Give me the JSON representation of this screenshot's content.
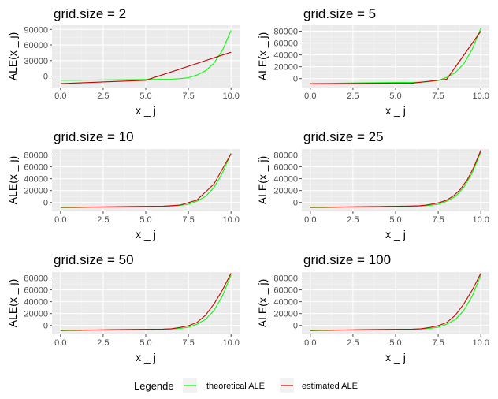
{
  "chart_data": [
    {
      "type": "line",
      "title": "grid.size = 2",
      "xlabel": "x _ j",
      "ylabel": "ALE(x _ j)",
      "xlim": [
        -0.5,
        10.5
      ],
      "ylim": [
        -22000,
        98000
      ],
      "xticks": [
        0.0,
        2.5,
        5.0,
        7.5,
        10.0
      ],
      "xtick_labels": [
        "0.0",
        "2.5",
        "5.0",
        "7.5",
        "10.0"
      ],
      "yticks": [
        0,
        30000,
        60000,
        90000
      ],
      "ytick_labels": [
        "0",
        "30000",
        "60000",
        "90000"
      ],
      "series": [
        {
          "name": "theoretical ALE",
          "color": "#00ff00",
          "x": [
            0,
            1,
            2,
            3,
            4,
            5,
            6,
            6.5,
            7,
            7.5,
            8,
            8.5,
            9,
            9.5,
            10
          ],
          "y": [
            -8000,
            -7900,
            -7600,
            -7200,
            -6800,
            -6500,
            -6300,
            -6000,
            -5000,
            -3000,
            2000,
            10000,
            25000,
            50000,
            88000
          ]
        },
        {
          "name": "estimated ALE",
          "color": "#cc0000",
          "x": [
            0,
            5,
            10
          ],
          "y": [
            -14500,
            -8000,
            46000
          ]
        }
      ]
    },
    {
      "type": "line",
      "title": "grid.size = 5",
      "xlabel": "x _ j",
      "ylabel": "ALE(x _ j)",
      "xlim": [
        -0.5,
        10.5
      ],
      "ylim": [
        -15000,
        90000
      ],
      "xticks": [
        0.0,
        2.5,
        5.0,
        7.5,
        10.0
      ],
      "xtick_labels": [
        "0.0",
        "2.5",
        "5.0",
        "7.5",
        "10.0"
      ],
      "yticks": [
        0,
        20000,
        40000,
        60000,
        80000
      ],
      "ytick_labels": [
        "0",
        "20000",
        "40000",
        "60000",
        "80000"
      ],
      "series": [
        {
          "name": "theoretical ALE",
          "color": "#00ff00",
          "x": [
            0,
            1,
            2,
            3,
            4,
            5,
            6,
            6.5,
            7,
            7.5,
            8,
            8.5,
            9,
            9.5,
            10
          ],
          "y": [
            -8000,
            -7900,
            -7600,
            -7200,
            -6800,
            -6500,
            -6300,
            -6000,
            -5000,
            -3000,
            2000,
            10000,
            25000,
            50000,
            85000
          ]
        },
        {
          "name": "estimated ALE",
          "color": "#cc0000",
          "x": [
            0,
            2,
            4,
            6,
            8,
            10
          ],
          "y": [
            -9000,
            -8500,
            -8000,
            -7500,
            -1000,
            80000
          ]
        }
      ]
    },
    {
      "type": "line",
      "title": "grid.size = 10",
      "xlabel": "x _ j",
      "ylabel": "ALE(x _ j)",
      "xlim": [
        -0.5,
        10.5
      ],
      "ylim": [
        -15000,
        90000
      ],
      "xticks": [
        0.0,
        2.5,
        5.0,
        7.5,
        10.0
      ],
      "xtick_labels": [
        "0.0",
        "2.5",
        "5.0",
        "7.5",
        "10.0"
      ],
      "yticks": [
        0,
        20000,
        40000,
        60000,
        80000
      ],
      "ytick_labels": [
        "0",
        "20000",
        "40000",
        "60000",
        "80000"
      ],
      "series": [
        {
          "name": "theoretical ALE",
          "color": "#00ff00",
          "x": [
            0,
            1,
            2,
            3,
            4,
            5,
            6,
            6.5,
            7,
            7.5,
            8,
            8.5,
            9,
            9.5,
            10
          ],
          "y": [
            -8000,
            -7900,
            -7600,
            -7200,
            -6800,
            -6500,
            -6300,
            -6000,
            -5000,
            -3000,
            2000,
            10000,
            25000,
            50000,
            83000
          ]
        },
        {
          "name": "estimated ALE",
          "color": "#cc0000",
          "x": [
            0,
            1,
            2,
            3,
            4,
            5,
            6,
            7,
            8,
            9,
            10
          ],
          "y": [
            -8500,
            -8200,
            -7800,
            -7500,
            -7200,
            -6800,
            -6500,
            -4500,
            4000,
            31000,
            82000
          ]
        }
      ]
    },
    {
      "type": "line",
      "title": "grid.size = 25",
      "xlabel": "x _ j",
      "ylabel": "ALE(x _ j)",
      "xlim": [
        -0.5,
        10.5
      ],
      "ylim": [
        -15000,
        90000
      ],
      "xticks": [
        0.0,
        2.5,
        5.0,
        7.5,
        10.0
      ],
      "xtick_labels": [
        "0.0",
        "2.5",
        "5.0",
        "7.5",
        "10.0"
      ],
      "yticks": [
        0,
        20000,
        40000,
        60000,
        80000
      ],
      "ytick_labels": [
        "0",
        "20000",
        "40000",
        "60000",
        "80000"
      ],
      "series": [
        {
          "name": "theoretical ALE",
          "color": "#00ff00",
          "x": [
            0,
            1,
            2,
            3,
            4,
            5,
            6,
            6.5,
            7,
            7.5,
            8,
            8.5,
            9,
            9.5,
            10
          ],
          "y": [
            -8000,
            -7900,
            -7600,
            -7200,
            -6800,
            -6500,
            -6300,
            -6000,
            -5000,
            -3000,
            2000,
            10000,
            25000,
            50000,
            85000
          ]
        },
        {
          "name": "estimated ALE",
          "color": "#cc0000",
          "x": [
            0,
            0.4,
            0.8,
            1.2,
            1.6,
            2,
            2.4,
            2.8,
            3.2,
            3.6,
            4,
            4.4,
            4.8,
            5.2,
            5.6,
            6,
            6.4,
            6.8,
            7.2,
            7.6,
            8,
            8.4,
            8.8,
            9.2,
            9.6,
            10
          ],
          "y": [
            -8500,
            -8400,
            -8300,
            -8100,
            -7900,
            -7700,
            -7600,
            -7400,
            -7300,
            -7100,
            -7000,
            -6800,
            -6600,
            -6400,
            -6200,
            -6000,
            -5500,
            -4500,
            -2500,
            0,
            4000,
            11000,
            22000,
            38000,
            60000,
            88000
          ]
        }
      ]
    },
    {
      "type": "line",
      "title": "grid.size = 50",
      "xlabel": "x _ j",
      "ylabel": "ALE(x _ j)",
      "xlim": [
        -0.5,
        10.5
      ],
      "ylim": [
        -15000,
        90000
      ],
      "xticks": [
        0.0,
        2.5,
        5.0,
        7.5,
        10.0
      ],
      "xtick_labels": [
        "0.0",
        "2.5",
        "5.0",
        "7.5",
        "10.0"
      ],
      "yticks": [
        0,
        20000,
        40000,
        60000,
        80000
      ],
      "ytick_labels": [
        "0",
        "20000",
        "40000",
        "60000",
        "80000"
      ],
      "series": [
        {
          "name": "theoretical ALE",
          "color": "#00ff00",
          "x": [
            0,
            1,
            2,
            3,
            4,
            5,
            6,
            6.5,
            7,
            7.5,
            8,
            8.5,
            9,
            9.5,
            10
          ],
          "y": [
            -8000,
            -7900,
            -7600,
            -7200,
            -6800,
            -6500,
            -6300,
            -6000,
            -5000,
            -3000,
            2000,
            10000,
            25000,
            50000,
            85000
          ]
        },
        {
          "name": "estimated ALE",
          "color": "#cc0000",
          "x": [
            0,
            0.5,
            1,
            1.5,
            2,
            2.5,
            3,
            3.5,
            4,
            4.5,
            5,
            5.5,
            6,
            6.5,
            7,
            7.5,
            8,
            8.5,
            9,
            9.5,
            10
          ],
          "y": [
            -8600,
            -8400,
            -8200,
            -7900,
            -7700,
            -7500,
            -7300,
            -7100,
            -6900,
            -6700,
            -6600,
            -6400,
            -6200,
            -5500,
            -3500,
            -500,
            5000,
            17000,
            36000,
            60000,
            88000
          ]
        }
      ]
    },
    {
      "type": "line",
      "title": "grid.size = 100",
      "xlabel": "x _ j",
      "ylabel": "ALE(x _ j)",
      "xlim": [
        -0.5,
        10.5
      ],
      "ylim": [
        -15000,
        90000
      ],
      "xticks": [
        0.0,
        2.5,
        5.0,
        7.5,
        10.0
      ],
      "xtick_labels": [
        "0.0",
        "2.5",
        "5.0",
        "7.5",
        "10.0"
      ],
      "yticks": [
        0,
        20000,
        40000,
        60000,
        80000
      ],
      "ytick_labels": [
        "0",
        "20000",
        "40000",
        "60000",
        "80000"
      ],
      "series": [
        {
          "name": "theoretical ALE",
          "color": "#00ff00",
          "x": [
            0,
            1,
            2,
            3,
            4,
            5,
            6,
            6.5,
            7,
            7.5,
            8,
            8.5,
            9,
            9.5,
            10
          ],
          "y": [
            -8000,
            -7900,
            -7600,
            -7200,
            -6800,
            -6500,
            -6300,
            -6000,
            -5000,
            -3000,
            2000,
            10000,
            25000,
            50000,
            85000
          ]
        },
        {
          "name": "estimated ALE",
          "color": "#cc0000",
          "x": [
            0,
            0.5,
            1,
            1.5,
            2,
            2.5,
            3,
            3.5,
            4,
            4.5,
            5,
            5.5,
            6,
            6.5,
            7,
            7.5,
            8,
            8.5,
            9,
            9.5,
            10
          ],
          "y": [
            -8600,
            -8400,
            -8200,
            -7900,
            -7700,
            -7500,
            -7300,
            -7100,
            -6900,
            -6700,
            -6600,
            -6400,
            -6200,
            -5500,
            -3500,
            -500,
            5000,
            17000,
            36000,
            60000,
            88000
          ]
        }
      ]
    }
  ],
  "legend": {
    "title": "Legende",
    "position": "bottom",
    "items": [
      {
        "label": "theoretical ALE",
        "color": "#00ff00"
      },
      {
        "label": "estimated ALE",
        "color": "#cc0000"
      }
    ]
  },
  "style": {
    "panel_bg": "#ebebeb",
    "grid_major": "#ffffff",
    "grid_minor": "#f5f5f5",
    "tick_color": "#4d4d4d"
  }
}
